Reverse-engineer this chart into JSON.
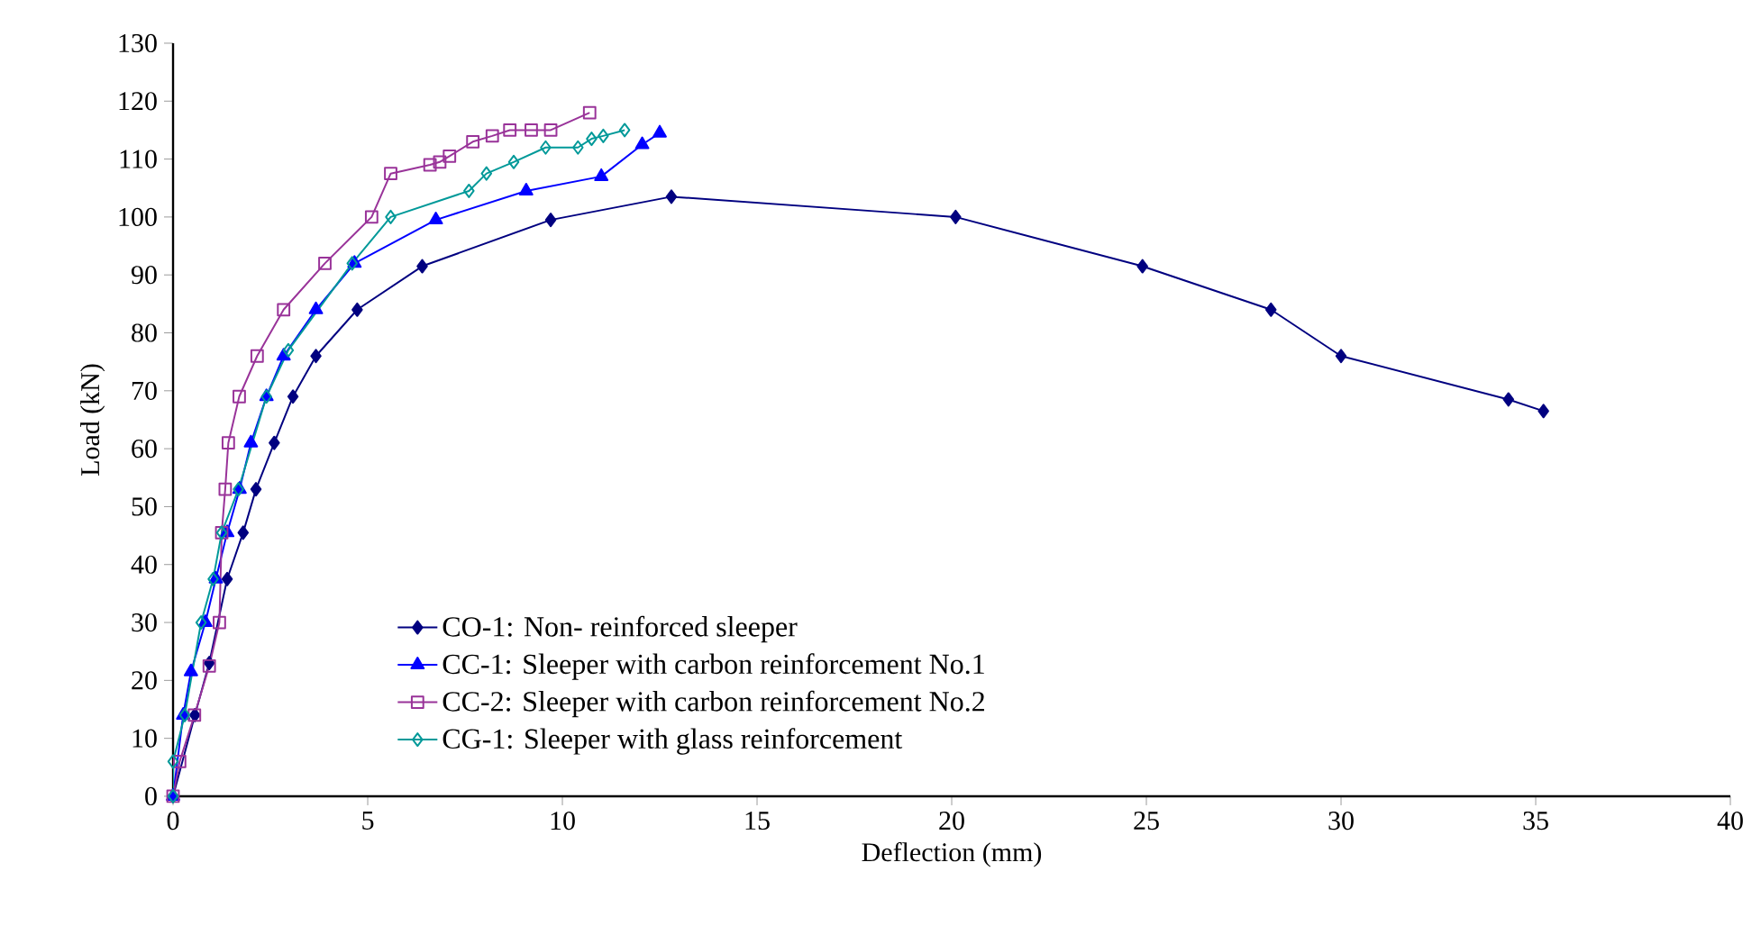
{
  "chart_data": {
    "type": "line",
    "xlabel": "Deflection (mm)",
    "ylabel": "Load (kN)",
    "xlim": [
      0,
      40
    ],
    "ylim": [
      0,
      130
    ],
    "xticks": [
      0,
      5,
      10,
      15,
      20,
      25,
      30,
      35,
      40
    ],
    "yticks": [
      0,
      10,
      20,
      30,
      40,
      50,
      60,
      70,
      80,
      90,
      100,
      110,
      120,
      130
    ],
    "grid": false,
    "legend": "bottom left",
    "line_style": "solid",
    "series": [
      {
        "name": "CO-1: Non- reinforced sleeper",
        "color": "#000080",
        "marker": "diamond",
        "x": [
          0,
          0.56,
          0.93,
          1.39,
          1.8,
          2.13,
          2.6,
          3.08,
          3.67,
          4.73,
          6.4,
          9.7,
          12.8,
          20.1,
          24.9,
          28.2,
          30.0,
          34.3,
          35.2
        ],
        "values": [
          0,
          14,
          23,
          37.5,
          45.5,
          53,
          61,
          69,
          76,
          84,
          91.5,
          99.5,
          103.5,
          100,
          91.5,
          84,
          76,
          68.5,
          66.5
        ]
      },
      {
        "name": "CC-1: Sleeper with carbon reinforcement No.1",
        "color": "#0000ff",
        "marker": "triangle",
        "x": [
          0,
          0.26,
          0.46,
          0.83,
          1.1,
          1.39,
          1.71,
          2.0,
          2.4,
          2.84,
          3.67,
          4.66,
          6.75,
          9.07,
          11.0,
          12.05,
          12.5
        ],
        "values": [
          0,
          14,
          21.5,
          30,
          37.5,
          45.5,
          53,
          61,
          69,
          76,
          84,
          92,
          99.5,
          104.5,
          107,
          112.5,
          114.5
        ]
      },
      {
        "name": "CC-2: Sleeper with carbon reinforcement No.2",
        "color": "#993399",
        "marker": "square",
        "x": [
          0,
          0.17,
          0.55,
          0.93,
          1.19,
          1.25,
          1.34,
          1.42,
          1.7,
          2.16,
          2.84,
          3.9,
          5.1,
          5.59,
          6.6,
          6.85,
          7.1,
          7.7,
          8.2,
          8.65,
          9.2,
          9.7,
          10.7
        ],
        "values": [
          0,
          6,
          14,
          22.5,
          30,
          45.5,
          53,
          61,
          69,
          76,
          84,
          92,
          100,
          107.5,
          109,
          109.5,
          110.5,
          113,
          114,
          115,
          115,
          115,
          118
        ]
      },
      {
        "name": "CG-1: Sleeper with glass reinforcement",
        "color": "#009999",
        "marker": "diamond",
        "x": [
          0,
          0,
          0.3,
          0.72,
          1.03,
          1.25,
          1.68,
          2.4,
          2.96,
          4.6,
          5.59,
          7.6,
          8.05,
          8.75,
          9.57,
          10.4,
          10.75,
          11.05,
          11.6
        ],
        "values": [
          0,
          6,
          14,
          30,
          37.5,
          45.5,
          53,
          69,
          77,
          92,
          100,
          104.5,
          107.5,
          109.5,
          112,
          112,
          113.5,
          114,
          115
        ]
      }
    ]
  }
}
